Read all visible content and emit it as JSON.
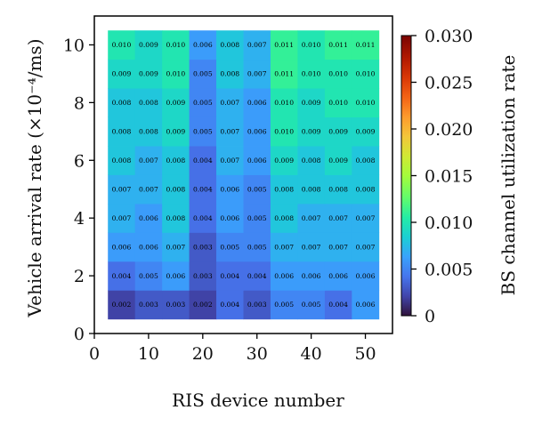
{
  "chart_data": {
    "type": "heatmap",
    "xlabel": "RIS device number",
    "ylabel": "Vehicle arrival rate (×10⁻⁴/ms)",
    "colorbar_label": "BS channel utilization rate",
    "x_categories": [
      5,
      10,
      15,
      20,
      25,
      30,
      35,
      40,
      45,
      50
    ],
    "y_categories": [
      1,
      2,
      3,
      4,
      5,
      6,
      7,
      8,
      9,
      10
    ],
    "xlim": [
      0,
      55
    ],
    "ylim": [
      0,
      11
    ],
    "x_ticks": [
      0,
      10,
      20,
      30,
      40,
      50
    ],
    "y_ticks": [
      0,
      2,
      4,
      6,
      8,
      10
    ],
    "color_range": [
      0,
      0.03
    ],
    "colorbar_ticks": [
      "0",
      "0.005",
      "0.010",
      "0.015",
      "0.020",
      "0.025",
      "0.030"
    ],
    "colormap": "turbo",
    "values": [
      [
        0.002,
        0.003,
        0.003,
        0.002,
        0.004,
        0.003,
        0.005,
        0.005,
        0.004,
        0.006
      ],
      [
        0.004,
        0.005,
        0.006,
        0.003,
        0.004,
        0.004,
        0.006,
        0.006,
        0.006,
        0.006
      ],
      [
        0.006,
        0.006,
        0.007,
        0.003,
        0.005,
        0.005,
        0.007,
        0.007,
        0.007,
        0.007
      ],
      [
        0.007,
        0.006,
        0.008,
        0.004,
        0.006,
        0.005,
        0.008,
        0.007,
        0.007,
        0.007
      ],
      [
        0.007,
        0.007,
        0.008,
        0.004,
        0.006,
        0.005,
        0.008,
        0.008,
        0.008,
        0.008
      ],
      [
        0.008,
        0.007,
        0.008,
        0.004,
        0.007,
        0.006,
        0.009,
        0.008,
        0.009,
        0.008
      ],
      [
        0.008,
        0.008,
        0.009,
        0.005,
        0.007,
        0.006,
        0.01,
        0.009,
        0.009,
        0.009
      ],
      [
        0.008,
        0.008,
        0.009,
        0.005,
        0.007,
        0.006,
        0.01,
        0.009,
        0.01,
        0.01
      ],
      [
        0.009,
        0.009,
        0.01,
        0.005,
        0.008,
        0.007,
        0.011,
        0.01,
        0.01,
        0.01
      ],
      [
        0.01,
        0.009,
        0.01,
        0.006,
        0.008,
        0.007,
        0.011,
        0.01,
        0.011,
        0.011
      ]
    ],
    "value_labels": [
      [
        "0.002",
        "0.003",
        "0.003",
        "0.002",
        "0.004",
        "0.003",
        "0.005",
        "0.005",
        "0.004",
        "0.006"
      ],
      [
        "0.004",
        "0.005",
        "0.006",
        "0.003",
        "0.004",
        "0.004",
        "0.006",
        "0.006",
        "0.006",
        "0.006"
      ],
      [
        "0.006",
        "0.006",
        "0.007",
        "0.003",
        "0.005",
        "0.005",
        "0.007",
        "0.007",
        "0.007",
        "0.007"
      ],
      [
        "0.007",
        "0.006",
        "0.008",
        "0.004",
        "0.006",
        "0.005",
        "0.008",
        "0.007",
        "0.007",
        "0.007"
      ],
      [
        "0.007",
        "0.007",
        "0.008",
        "0.004",
        "0.006",
        "0.005",
        "0.008",
        "0.008",
        "0.008",
        "0.008"
      ],
      [
        "0.008",
        "0.007",
        "0.008",
        "0.004",
        "0.007",
        "0.006",
        "0.009",
        "0.008",
        "0.009",
        "0.008"
      ],
      [
        "0.008",
        "0.008",
        "0.009",
        "0.005",
        "0.007",
        "0.006",
        "0.010",
        "0.009",
        "0.009",
        "0.009"
      ],
      [
        "0.008",
        "0.008",
        "0.009",
        "0.005",
        "0.007",
        "0.006",
        "0.010",
        "0.009",
        "0.010",
        "0.010"
      ],
      [
        "0.009",
        "0.009",
        "0.010",
        "0.005",
        "0.008",
        "0.007",
        "0.011",
        "0.010",
        "0.010",
        "0.010"
      ],
      [
        "0.010",
        "0.009",
        "0.010",
        "0.006",
        "0.008",
        "0.007",
        "0.011",
        "0.010",
        "0.011",
        "0.011"
      ]
    ]
  }
}
